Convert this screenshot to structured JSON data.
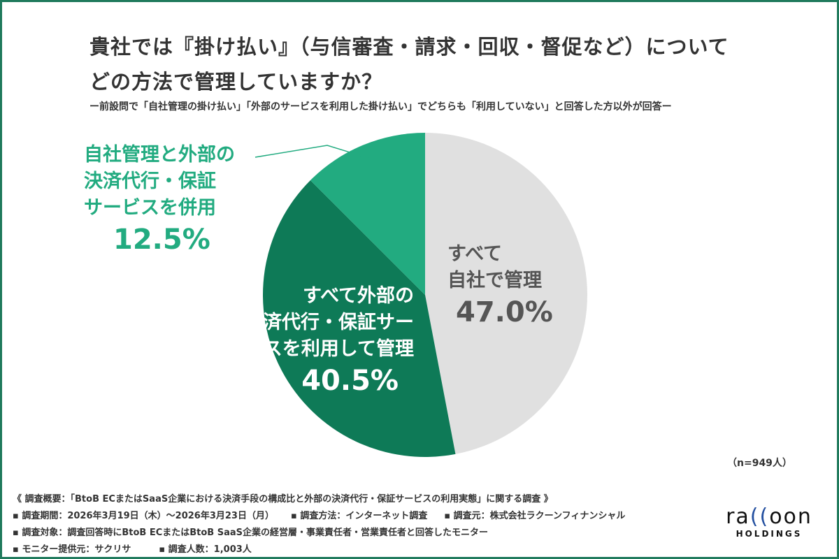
{
  "title_line1": "貴社では『掛け払い』（与信審査・請求・回収・督促など）について",
  "title_line2": "どの方法で管理していますか？",
  "subtitle": "ー前設問で「自社管理の掛け払い」「外部のサービスを利用した掛け払い」でどちらも「利用していない」と回答した方以外が回答ー",
  "chart_data": {
    "type": "pie",
    "title": "貴社では『掛け払い』（与信審査・請求・回収・督促など）についてどの方法で管理していますか？",
    "start": "top",
    "direction": "clockwise",
    "slices": [
      {
        "label": "すべて自社で管理",
        "label_lines": [
          "すべて",
          "自社で管理"
        ],
        "value": 47.0,
        "pct_text": "47.0%",
        "color": "#e0e0e0",
        "text_color": "#555555"
      },
      {
        "label": "すべて外部の決済代行・保証サービスを利用して管理",
        "label_lines": [
          "すべて外部の",
          "決済代行・保証サー",
          "ビスを利用して管理"
        ],
        "value": 40.5,
        "pct_text": "40.5%",
        "color": "#0e7a57",
        "text_color": "#ffffff"
      },
      {
        "label": "自社管理と外部の決済代行・保証サービスを併用",
        "label_lines": [
          "自社管理と外部の",
          "決済代行・保証",
          "サービスを併用"
        ],
        "value": 12.5,
        "pct_text": "12.5%",
        "color": "#22ab80",
        "text_color": "#22ab80"
      }
    ],
    "n_label": "（n=949人）"
  },
  "footer": {
    "line1": "《 調査概要：「BtoB ECまたはSaaS企業における決済手段の構成比と外部の決済代行・保証サービスの利用実態」に関する調査 》",
    "period": "▪ 調査期間：2026年3月19日（木）～2026年3月23日（月）",
    "method": "▪ 調査方法：インターネット調査",
    "org": "▪ 調査元：株式会社ラクーンフィナンシャル",
    "target": "▪ 調査対象：調査回答時にBtoB ECまたはBtoB SaaS企業の経営層・事業責任者・営業責任者と回答したモニター",
    "provider": "▪ モニター提供元：サクリサ",
    "count": "▪ 調査人数：1,003人"
  },
  "logo": {
    "text": "raccoon",
    "sub": "HOLDINGS"
  }
}
